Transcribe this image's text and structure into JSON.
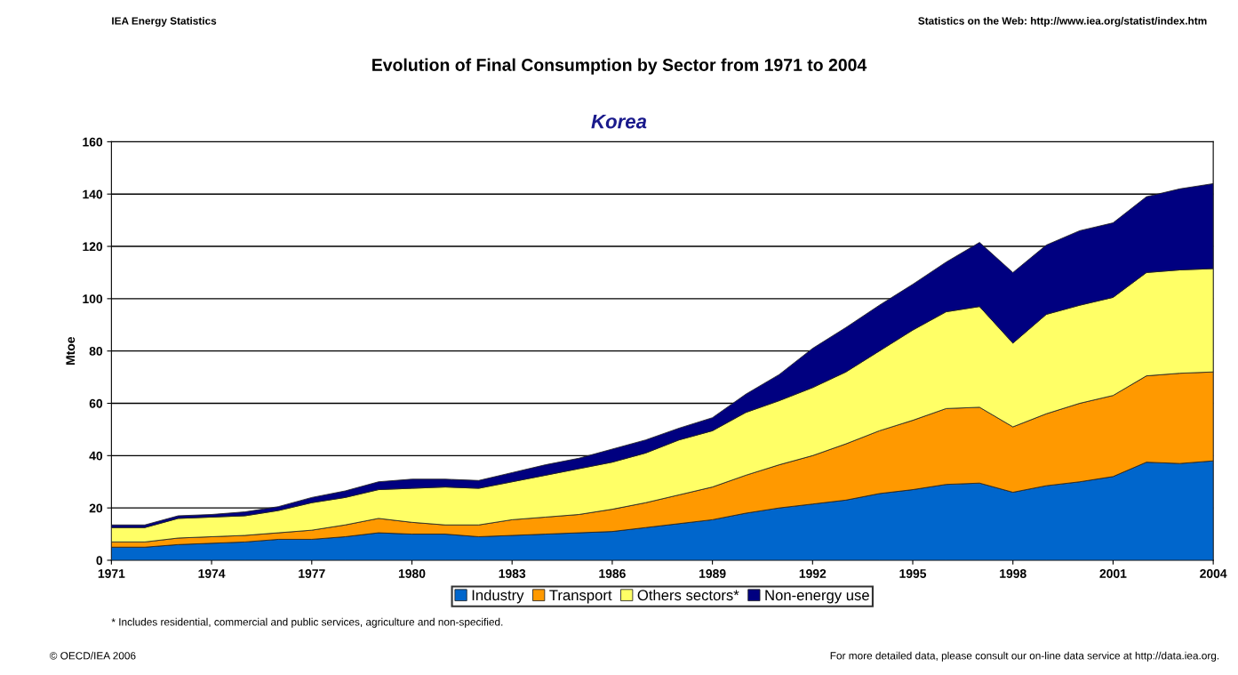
{
  "chart_data": {
    "type": "area",
    "stacked": true,
    "title": "Evolution of Final Consumption by Sector from 1971 to 2004",
    "subtitle": "Korea",
    "ylabel": "Mtoe",
    "x": [
      1971,
      1972,
      1973,
      1974,
      1975,
      1976,
      1977,
      1978,
      1979,
      1980,
      1981,
      1982,
      1983,
      1984,
      1985,
      1986,
      1987,
      1988,
      1989,
      1990,
      1991,
      1992,
      1993,
      1994,
      1995,
      1996,
      1997,
      1998,
      1999,
      2000,
      2001,
      2002,
      2003,
      2004
    ],
    "series": [
      {
        "name": "Industry",
        "color": "#0066cc",
        "values": [
          5,
          5,
          6,
          6.5,
          7,
          8,
          8,
          9,
          10.5,
          10,
          10,
          9,
          9.5,
          10,
          10.5,
          11,
          12.5,
          14,
          15.5,
          18,
          20,
          21.5,
          23,
          25.5,
          27,
          29,
          29.5,
          26,
          28.5,
          30,
          32,
          37.5,
          37,
          38
        ]
      },
      {
        "name": "Transport",
        "color": "#ff9900",
        "values": [
          2,
          2,
          2.5,
          2.5,
          2.5,
          2.5,
          3.5,
          4.5,
          5.5,
          4.5,
          3.5,
          4.5,
          6,
          6.5,
          7,
          8.5,
          9.5,
          11,
          12.5,
          14.5,
          16.5,
          18.5,
          21.5,
          24,
          26.5,
          29,
          29,
          25,
          27.5,
          30,
          31,
          33,
          34.5,
          34
        ]
      },
      {
        "name": "Others sectors*",
        "color": "#ffff66",
        "values": [
          5.5,
          5.5,
          7.5,
          7.5,
          7.5,
          8.5,
          10.5,
          10.5,
          11,
          13,
          14.5,
          14,
          14.5,
          16,
          17.5,
          18,
          19,
          21,
          21.5,
          24,
          24.5,
          26,
          27.5,
          30.5,
          34.5,
          37,
          38.5,
          32,
          38,
          37.5,
          37.5,
          39.5,
          39.5,
          39.5
        ]
      },
      {
        "name": "Non-energy use",
        "color": "#000080",
        "values": [
          1,
          1,
          1,
          1,
          1.5,
          1.5,
          2,
          2.5,
          3,
          3.5,
          3,
          3,
          3.5,
          4,
          4,
          5,
          5,
          4.5,
          5,
          7,
          10,
          15,
          17,
          17.5,
          17.5,
          19,
          24.5,
          27,
          26.5,
          28.5,
          28.5,
          29,
          31,
          32.5
        ]
      }
    ],
    "xlim": [
      1971,
      2004
    ],
    "xticks": [
      1971,
      1974,
      1977,
      1980,
      1983,
      1986,
      1989,
      1992,
      1995,
      1998,
      2001,
      2004
    ],
    "ylim": [
      0,
      160
    ],
    "yticks": [
      0,
      20,
      40,
      60,
      80,
      100,
      120,
      140,
      160
    ],
    "grid": "y",
    "legend": "bottom",
    "annotations": [
      "IEA Energy Statistics",
      "Statistics on the Web: http://www.iea.org/statist/index.htm",
      "* Includes residential, commercial and public services, agriculture and non-specified.",
      "© OECD/IEA 2006",
      "For more detailed data, please consult our on-line data service at http://data.iea.org."
    ]
  }
}
